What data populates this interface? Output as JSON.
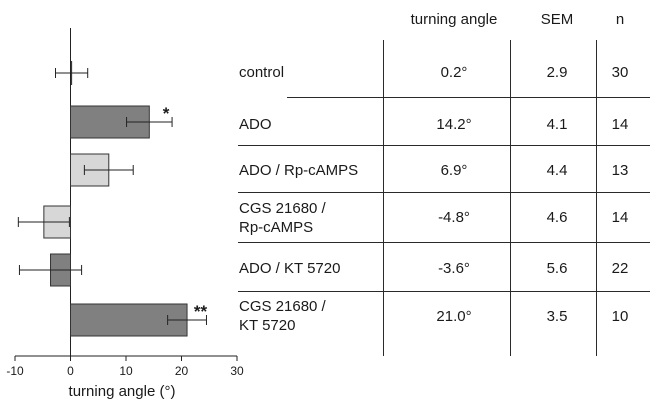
{
  "chart_data": {
    "type": "bar",
    "orientation": "horizontal",
    "categories": [
      "control",
      "ADO",
      "ADO / Rp-cAMPS",
      "CGS 21680 / Rp-cAMPS",
      "ADO / KT 5720",
      "CGS 21680 / KT 5720"
    ],
    "values": [
      0.2,
      14.2,
      6.9,
      -4.8,
      -3.6,
      21.0
    ],
    "errors": [
      2.9,
      4.1,
      4.4,
      4.6,
      5.6,
      3.5
    ],
    "bar_colors": [
      "#ffffff",
      "#808080",
      "#d7d7d7",
      "#d7d7d7",
      "#808080",
      "#808080"
    ],
    "significance": [
      "",
      "*",
      "",
      "",
      "",
      "**"
    ],
    "xlabel": "turning angle (°)",
    "xlim": [
      -10,
      30
    ],
    "xticks": [
      "-10",
      "0",
      "10",
      "20",
      "30"
    ],
    "grid": false
  },
  "table": {
    "headers": {
      "angle": "turning angle",
      "sem": "SEM",
      "n": "n"
    },
    "rows": [
      {
        "label_lines": [
          "control"
        ],
        "angle": "0.2°",
        "sem": "2.9",
        "n": "30"
      },
      {
        "label_lines": [
          "ADO"
        ],
        "angle": "14.2°",
        "sem": "4.1",
        "n": "14"
      },
      {
        "label_lines": [
          "ADO / Rp-cAMPS"
        ],
        "angle": "6.9°",
        "sem": "4.4",
        "n": "13"
      },
      {
        "label_lines": [
          "CGS 21680 /",
          "Rp-cAMPS"
        ],
        "angle": "-4.8°",
        "sem": "4.6",
        "n": "14"
      },
      {
        "label_lines": [
          "ADO / KT 5720"
        ],
        "angle": "-3.6°",
        "sem": "5.6",
        "n": "22"
      },
      {
        "label_lines": [
          "CGS 21680 /",
          "KT 5720"
        ],
        "angle": "21.0°",
        "sem": "3.5",
        "n": "10"
      }
    ]
  }
}
